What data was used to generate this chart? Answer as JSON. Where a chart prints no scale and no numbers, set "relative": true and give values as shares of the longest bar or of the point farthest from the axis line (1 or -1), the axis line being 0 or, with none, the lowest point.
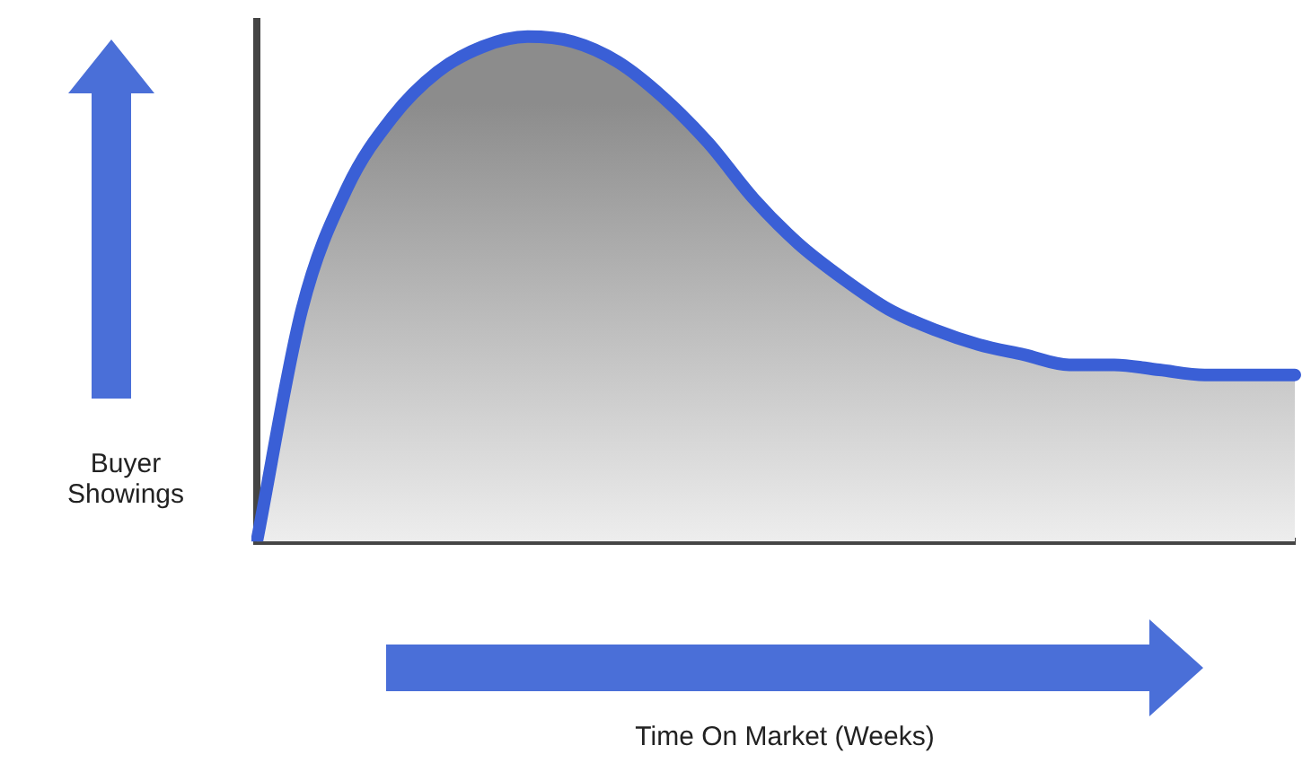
{
  "chart_data": {
    "type": "area",
    "relative": true,
    "annotations": [
      "Time On Market (Weeks)"
    ],
    "ylabel": "Buyer Showings",
    "categories": [
      null,
      null,
      null,
      null,
      null,
      null,
      null,
      null,
      null,
      null,
      null,
      null,
      null,
      null,
      null,
      null,
      null,
      null,
      null,
      null,
      null,
      null,
      null,
      null
    ],
    "series": [
      {
        "color": "#3a5fd6",
        "values": [
          0,
          0.46,
          0.7,
          0.84,
          0.93,
          0.98,
          1,
          0.99,
          0.95,
          0.88,
          0.79,
          0.68,
          0.59,
          0.52,
          0.46,
          0.42,
          0.39,
          0.37,
          0.35,
          0.35,
          0.34,
          0.33,
          0.33,
          0.33
        ]
      }
    ],
    "grid": false,
    "legend": false,
    "marker": "none",
    "line_style": "solid"
  }
}
